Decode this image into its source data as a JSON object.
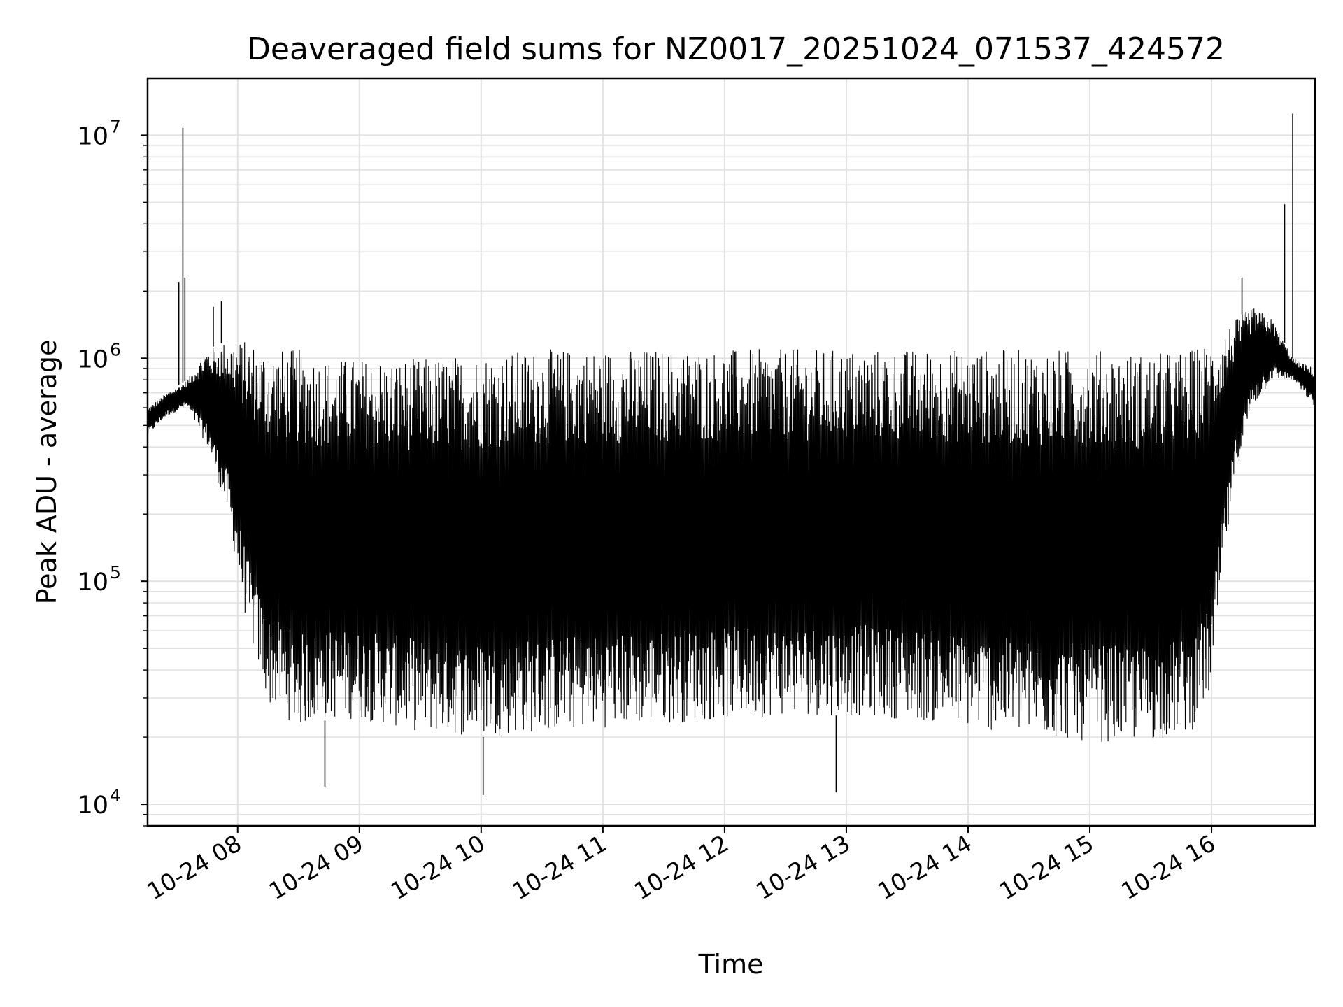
{
  "chart_data": {
    "type": "line",
    "title": "Deaveraged field sums for NZ0017_20251024_071537_424572",
    "xlabel": "Time",
    "ylabel": "Peak ADU - average",
    "yscale": "log",
    "ylim": [
      8000,
      18000000
    ],
    "xlim": [
      "2025-10-24 07:15:37",
      "2025-10-24 16:51:00"
    ],
    "grid": true,
    "x_ticks": [
      {
        "value": "2025-10-24 08:00",
        "label": "10-24 08"
      },
      {
        "value": "2025-10-24 09:00",
        "label": "10-24 09"
      },
      {
        "value": "2025-10-24 10:00",
        "label": "10-24 10"
      },
      {
        "value": "2025-10-24 11:00",
        "label": "10-24 11"
      },
      {
        "value": "2025-10-24 12:00",
        "label": "10-24 12"
      },
      {
        "value": "2025-10-24 13:00",
        "label": "10-24 13"
      },
      {
        "value": "2025-10-24 14:00",
        "label": "10-24 14"
      },
      {
        "value": "2025-10-24 15:00",
        "label": "10-24 15"
      },
      {
        "value": "2025-10-24 16:00",
        "label": "10-24 16"
      }
    ],
    "y_ticks": [
      {
        "value": 10000,
        "base": "10",
        "exp": "4"
      },
      {
        "value": 100000,
        "base": "10",
        "exp": "5"
      },
      {
        "value": 1000000,
        "base": "10",
        "exp": "6"
      },
      {
        "value": 10000000,
        "base": "10",
        "exp": "7"
      }
    ],
    "series": [
      {
        "color": "#000000",
        "envelope": {
          "time": [
            "2025-10-24 07:15:37",
            "2025-10-24 07:25",
            "2025-10-24 07:35",
            "2025-10-24 07:45",
            "2025-10-24 07:55",
            "2025-10-24 08:05",
            "2025-10-24 08:15",
            "2025-10-24 08:30",
            "2025-10-24 08:45",
            "2025-10-24 09:00",
            "2025-10-24 09:30",
            "2025-10-24 10:00",
            "2025-10-24 10:30",
            "2025-10-24 11:00",
            "2025-10-24 11:30",
            "2025-10-24 12:00",
            "2025-10-24 12:30",
            "2025-10-24 13:00",
            "2025-10-24 13:30",
            "2025-10-24 14:00",
            "2025-10-24 14:30",
            "2025-10-24 15:00",
            "2025-10-24 15:30",
            "2025-10-24 15:50",
            "2025-10-24 16:00",
            "2025-10-24 16:05",
            "2025-10-24 16:12",
            "2025-10-24 16:20",
            "2025-10-24 16:30",
            "2025-10-24 16:40",
            "2025-10-24 16:51"
          ],
          "upper": [
            600000,
            700000,
            800000,
            1100000,
            1200000,
            1200000,
            1100000,
            1100000,
            1000000,
            1000000,
            1000000,
            1050000,
            1100000,
            1100000,
            1100000,
            1100000,
            1100000,
            1100000,
            1100000,
            1100000,
            1100000,
            1100000,
            1050000,
            1100000,
            1200000,
            1300000,
            1500000,
            1700000,
            1500000,
            1000000,
            900000
          ],
          "lower": [
            450000,
            550000,
            600000,
            400000,
            200000,
            60000,
            28000,
            22000,
            24000,
            24000,
            21000,
            20000,
            21000,
            22000,
            23000,
            24000,
            25000,
            25000,
            24000,
            22000,
            20000,
            19000,
            19000,
            21000,
            32000,
            100000,
            300000,
            600000,
            800000,
            800000,
            600000
          ]
        },
        "spikes": [
          {
            "time": "2025-10-24 07:33",
            "value": 10800000
          },
          {
            "time": "2025-10-24 07:31",
            "value": 2200000
          },
          {
            "time": "2025-10-24 07:34",
            "value": 2300000
          },
          {
            "time": "2025-10-24 07:48",
            "value": 1700000
          },
          {
            "time": "2025-10-24 07:52",
            "value": 1800000
          },
          {
            "time": "2025-10-24 08:43",
            "value": 12000
          },
          {
            "time": "2025-10-24 10:01",
            "value": 11000
          },
          {
            "time": "2025-10-24 12:55",
            "value": 11300
          },
          {
            "time": "2025-10-24 16:15",
            "value": 2300000
          },
          {
            "time": "2025-10-24 16:36",
            "value": 4900000
          },
          {
            "time": "2025-10-24 16:40",
            "value": 12500000
          }
        ]
      }
    ]
  }
}
